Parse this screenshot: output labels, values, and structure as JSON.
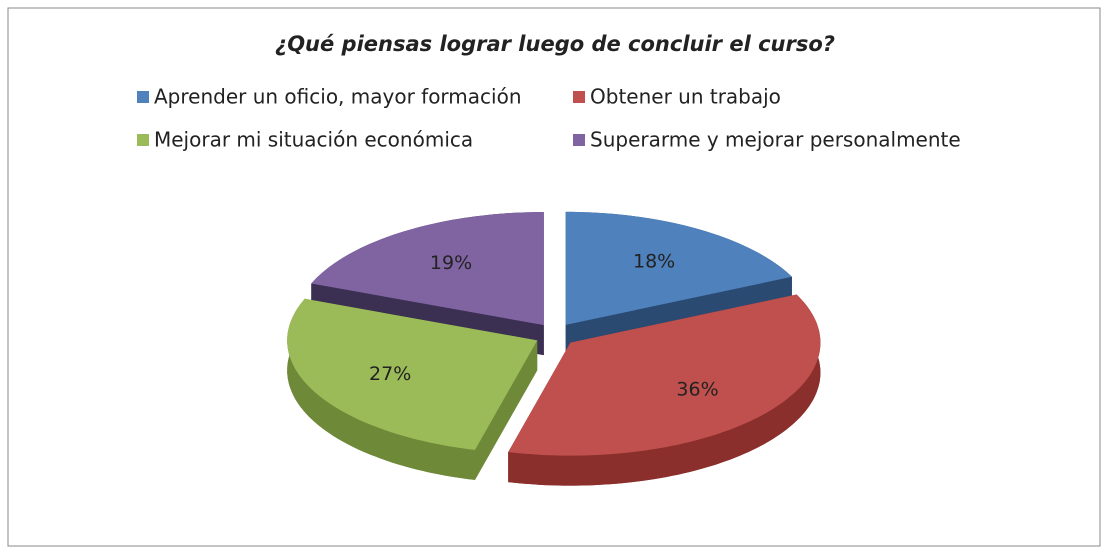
{
  "chart_data": {
    "type": "pie",
    "title": "¿Qué piensas  lograr luego de concluir el curso?",
    "categories": [
      "Aprender un oficio, mayor formación",
      "Obtener un trabajo",
      "Mejorar mi situación económica",
      "Superarme y mejorar personalmente"
    ],
    "values": [
      18,
      36,
      27,
      19
    ],
    "value_labels": [
      "18%",
      "36%",
      "27%",
      "19%"
    ],
    "colors": [
      "#4f81bd",
      "#c0504d",
      "#9bbb59",
      "#8064a2"
    ],
    "side_colors": [
      "#2b4a72",
      "#8a2f2c",
      "#6e8a38",
      "#3b2f52"
    ]
  }
}
